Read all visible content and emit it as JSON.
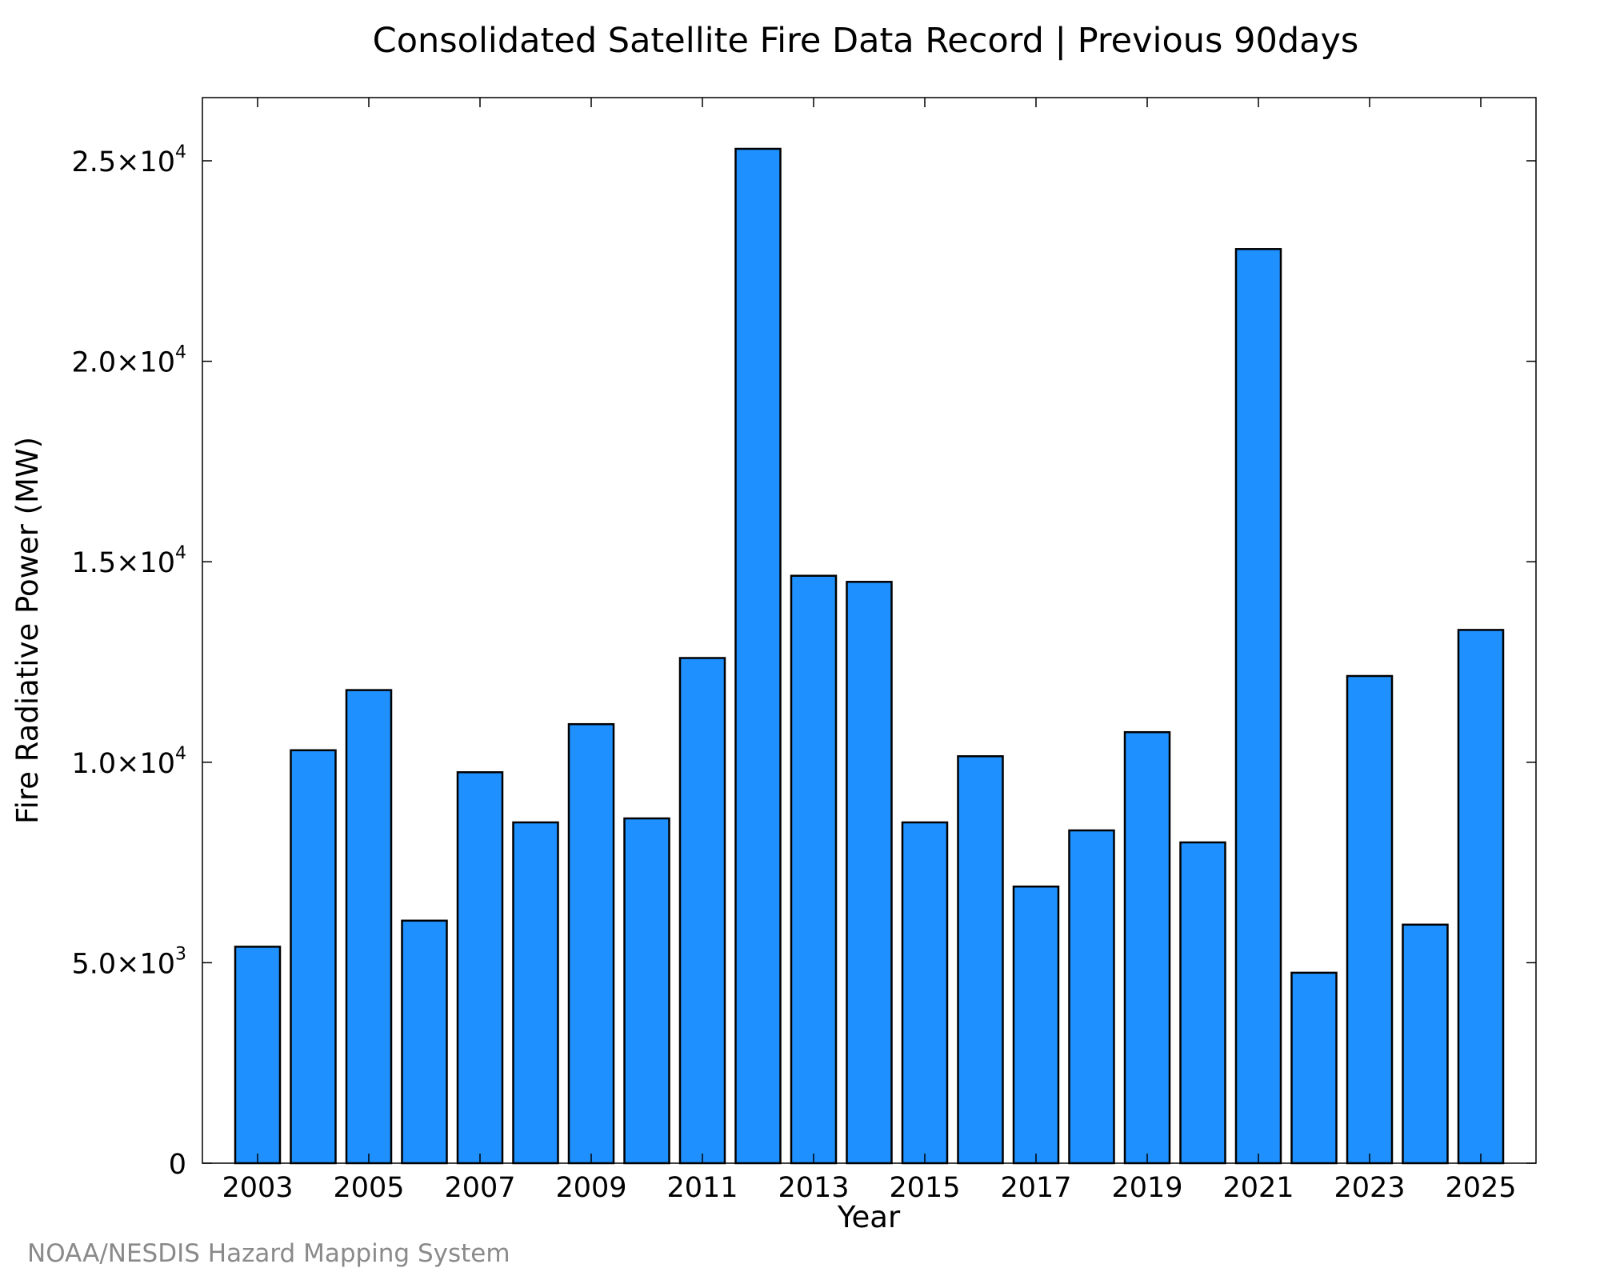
{
  "chart_data": {
    "type": "bar",
    "title": "Consolidated Satellite Fire Data Record | Previous 90days",
    "xlabel": "Year",
    "ylabel": "Fire Radiative Power (MW)",
    "categories": [
      "2003",
      "2004",
      "2005",
      "2006",
      "2007",
      "2008",
      "2009",
      "2010",
      "2011",
      "2012",
      "2013",
      "2014",
      "2015",
      "2016",
      "2017",
      "2018",
      "2019",
      "2020",
      "2021",
      "2022",
      "2023",
      "2024",
      "2025"
    ],
    "values": [
      5400,
      10300,
      11800,
      6050,
      9750,
      8500,
      10950,
      8600,
      12600,
      25300,
      14650,
      14500,
      8500,
      10150,
      6900,
      8300,
      10750,
      8000,
      22800,
      4750,
      12150,
      5950,
      13300
    ],
    "ylim": [
      0,
      26500
    ],
    "x_tick_labels": [
      "2003",
      "2005",
      "2007",
      "2009",
      "2011",
      "2013",
      "2015",
      "2017",
      "2019",
      "2021",
      "2023",
      "2025"
    ],
    "y_ticks": [
      {
        "value": 0,
        "mantissa": "0",
        "exp": ""
      },
      {
        "value": 5000,
        "mantissa": "5.0×10",
        "exp": "3"
      },
      {
        "value": 10000,
        "mantissa": "1.0×10",
        "exp": "4"
      },
      {
        "value": 15000,
        "mantissa": "1.5×10",
        "exp": "4"
      },
      {
        "value": 20000,
        "mantissa": "2.0×10",
        "exp": "4"
      },
      {
        "value": 25000,
        "mantissa": "2.5×10",
        "exp": "4"
      }
    ],
    "bar_color": "#1E90FF",
    "edge_color": "#000000",
    "grid": false,
    "legend": "none"
  },
  "footer": {
    "credit": "NOAA/NESDIS Hazard Mapping System"
  }
}
